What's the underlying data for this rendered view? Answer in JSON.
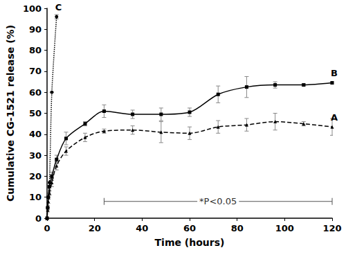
{
  "chart_data": {
    "type": "line",
    "x_label": "Time (hours)",
    "y_label": "Cumulative CG-1521 release (%)",
    "xlim": [
      0,
      120
    ],
    "xticks": [
      0,
      20,
      40,
      60,
      80,
      100,
      120
    ],
    "ylim": [
      0,
      100
    ],
    "yticks": [
      0,
      10,
      20,
      30,
      40,
      50,
      60,
      70,
      80,
      90,
      100
    ],
    "grid": false,
    "series": [
      {
        "name": "A",
        "color": "#000000",
        "marker": "triangle",
        "line_style": "dashed",
        "x": [
          0,
          0.25,
          0.5,
          1,
          2,
          4,
          8,
          16,
          24,
          36,
          48,
          60,
          72,
          84,
          96,
          108,
          120
        ],
        "values": [
          0,
          4,
          8,
          12,
          17,
          25,
          32,
          38.5,
          41.5,
          42,
          41,
          40.5,
          43.5,
          44.5,
          46,
          45,
          43.5
        ],
        "errors": [
          0,
          1,
          1,
          1,
          2,
          2,
          2,
          2,
          1,
          2,
          5,
          3,
          3,
          3,
          4,
          1,
          4
        ]
      },
      {
        "name": "B",
        "color": "#000000",
        "marker": "square",
        "line_style": "solid",
        "x": [
          0,
          0.25,
          0.5,
          1,
          2,
          4,
          8,
          16,
          24,
          36,
          48,
          60,
          72,
          84,
          96,
          108,
          120
        ],
        "values": [
          0,
          5,
          10,
          15,
          20,
          28,
          38,
          45,
          51,
          49.5,
          49.5,
          50.5,
          59,
          62.5,
          63.5,
          63.5,
          64.5
        ],
        "errors": [
          0,
          1,
          1,
          2,
          2,
          2,
          3,
          1,
          3,
          2,
          3,
          2,
          4,
          5,
          1.5,
          0.5,
          0.5
        ]
      },
      {
        "name": "C",
        "color": "#000000",
        "marker": "circle",
        "line_style": "dotted",
        "x": [
          0,
          0.25,
          0.5,
          1,
          2,
          4
        ],
        "values": [
          0,
          5,
          10,
          17,
          60,
          96
        ],
        "errors": [
          0,
          0,
          0,
          0,
          0,
          1
        ]
      }
    ],
    "annotations": [
      {
        "text": "*P<0.05",
        "x_range": [
          24,
          120
        ],
        "y": 8
      }
    ]
  }
}
